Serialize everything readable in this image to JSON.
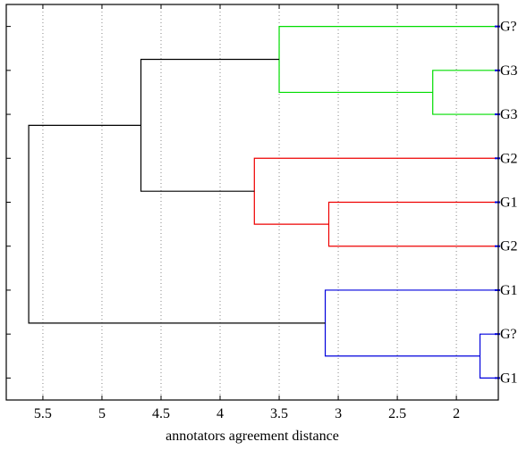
{
  "chart_data": {
    "type": "dendrogram",
    "xlabel": "annotators agreement distance",
    "xlim": [
      5.81,
      1.645
    ],
    "xticks": [
      5.5,
      5,
      4.5,
      4,
      3.5,
      3,
      2.5,
      2
    ],
    "grid": true,
    "leaves": [
      "G?",
      "G3",
      "G3",
      "G2",
      "G1",
      "G2",
      "G1",
      "G?",
      "G1"
    ],
    "merges": [
      {
        "children": [
          1,
          2
        ],
        "height": 2.2,
        "color": "#00dd00"
      },
      {
        "children": [
          0,
          9
        ],
        "height": 3.5,
        "color": "#00dd00"
      },
      {
        "children": [
          4,
          5
        ],
        "height": 3.08,
        "color": "#ee0000"
      },
      {
        "children": [
          3,
          11
        ],
        "height": 3.71,
        "color": "#ee0000"
      },
      {
        "children": [
          7,
          8
        ],
        "height": 1.8,
        "color": "#0000dd"
      },
      {
        "children": [
          6,
          13
        ],
        "height": 3.11,
        "color": "#0000dd"
      },
      {
        "children": [
          10,
          12
        ],
        "height": 4.67,
        "color": "#000000"
      },
      {
        "children": [
          15,
          14
        ],
        "height": 5.62,
        "color": "#000000"
      }
    ]
  }
}
